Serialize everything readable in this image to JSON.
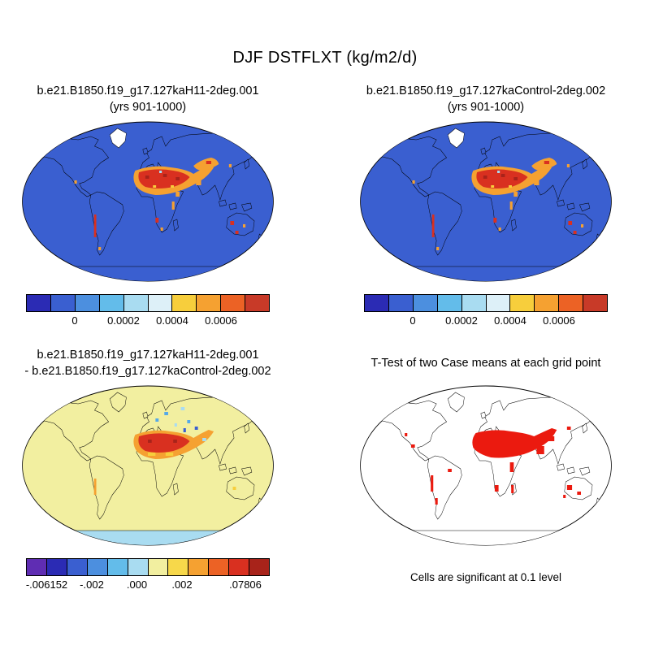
{
  "title": "DJF DSTFLXT (kg/m2/d)",
  "panels": [
    {
      "title_line1": "b.e21.B1850.f19_g17.127kaH11-2deg.001",
      "title_line2": "(yrs 901-1000)"
    },
    {
      "title_line1": "b.e21.B1850.f19_g17.127kaControl-2deg.002",
      "title_line2": "(yrs 901-1000)"
    },
    {
      "title_line1": "b.e21.B1850.f19_g17.127kaH11-2deg.001",
      "title_line2": "- b.e21.B1850.f19_g17.127kaControl-2deg.002"
    },
    {
      "title_line1": "T-Test of two Case means at each grid point",
      "caption": "Cells are significant at 0.1 level"
    }
  ],
  "colorbars": {
    "top": {
      "colors": [
        "#2B2BB4",
        "#3A5FD0",
        "#4C8FDF",
        "#63BCEA",
        "#A9DCF1",
        "#DDF0F8",
        "#F7CE3C",
        "#F5A131",
        "#EC6225",
        "#C83A28"
      ],
      "ticks": [
        {
          "label": "0",
          "pos": 0.2
        },
        {
          "label": "0.0002",
          "pos": 0.4
        },
        {
          "label": "0.0004",
          "pos": 0.6
        },
        {
          "label": "0.0006",
          "pos": 0.8
        }
      ]
    },
    "diff": {
      "colors": [
        "#5F2DB3",
        "#2B2BB4",
        "#3A5FD0",
        "#4C8FDF",
        "#63BCEA",
        "#A9DCF1",
        "#F2EFA0",
        "#F7D84A",
        "#F5A131",
        "#EC6225",
        "#D93020",
        "#A8231A"
      ],
      "ticks": [
        {
          "label": "-.006152",
          "pos": 0.085
        },
        {
          "label": "-.002",
          "pos": 0.27
        },
        {
          "label": ".000",
          "pos": 0.455
        },
        {
          "label": ".002",
          "pos": 0.64
        },
        {
          "label": ".07806",
          "pos": 0.9
        }
      ]
    }
  },
  "map_colors": {
    "field_blue": "#3A5FD0",
    "blue": "#3A5FD0",
    "sky": "#55A9E8",
    "pale_cyan": "#A9DCF1",
    "diff_yellow": "#F2EFA0",
    "yellow_orange": "#F7CE3C",
    "orange": "#F5A131",
    "red": "#D93020",
    "dark_red": "#A8231A",
    "ttest_red": "#EB1A0F",
    "white": "#FFFFFF"
  },
  "map_schemes": {
    "case": {
      "bg": "field_blue",
      "land": "field_blue",
      "greenland": "white",
      "antarctica": "field_blue",
      "overlays": "case"
    },
    "diff": {
      "bg": "diff_yellow",
      "land": "diff_yellow",
      "greenland": "diff_yellow",
      "antarctica": "pale_cyan",
      "overlays": "diff"
    },
    "ttest": {
      "bg": "white",
      "land": "white",
      "greenland": "white",
      "antarctica": "white",
      "overlays": "ttest"
    }
  },
  "chart_data": [
    {
      "type": "heatmap",
      "title": "b.e21.B1850.f19_g17.127kaH11-2deg.001 (yrs 901-1000)",
      "variable": "DSTFLXT",
      "units": "kg/m2/d",
      "season": "DJF",
      "projection": "Robinson world map",
      "colorbar_ticks": [
        0,
        0.0002,
        0.0004,
        0.0006
      ],
      "palette": [
        "#2B2BB4",
        "#3A5FD0",
        "#4C8FDF",
        "#63BCEA",
        "#A9DCF1",
        "#DDF0F8",
        "#F7CE3C",
        "#F5A131",
        "#EC6225",
        "#C83A28"
      ],
      "notable_features": "Dust flux near zero (blue) over oceans and most land; maxima above 0.0006 kg/m2/d (orange/red) over the Sahara, Sahel, Arabian Peninsula, Middle East and central Asia; small hotspots along the west coast of South America, southern Africa, Australia and Mexico; Greenland shown in pale/white colors."
    },
    {
      "type": "heatmap",
      "title": "b.e21.B1850.f19_g17.127kaControl-2deg.002 (yrs 901-1000)",
      "variable": "DSTFLXT",
      "units": "kg/m2/d",
      "season": "DJF",
      "projection": "Robinson world map",
      "colorbar_ticks": [
        0,
        0.0002,
        0.0004,
        0.0006
      ],
      "palette": [
        "#2B2BB4",
        "#3A5FD0",
        "#4C8FDF",
        "#63BCEA",
        "#A9DCF1",
        "#DDF0F8",
        "#F7CE3C",
        "#F5A131",
        "#EC6225",
        "#C83A28"
      ],
      "notable_features": "Very similar pattern to the H11 case: near-zero dust flux (blue) globally with red/orange maxima over the Sahara, Arabian Peninsula and Middle East, plus scattered coastal and Australian hotspots."
    },
    {
      "type": "heatmap",
      "title": "b.e21.B1850.f19_g17.127kaH11-2deg.001 - b.e21.B1850.f19_g17.127kaControl-2deg.002",
      "variable": "DSTFLXT difference",
      "units": "kg/m2/d",
      "season": "DJF",
      "projection": "Robinson world map",
      "colorbar_tick_labels": [
        "-.006152",
        "-.002",
        ".000",
        ".002",
        ".07806"
      ],
      "range": [
        -0.006152,
        0.07806
      ],
      "notable_features": "Differences near zero (pale yellow) almost everywhere; positive differences up to 0.07806 (orange/dark red) over the Sahara, Sahel and Middle East; scattered negative differences (blue/cyan) over eastern Europe, the Caspian region, central Asia and Tibet; light blue band over Antarctica."
    },
    {
      "type": "heatmap",
      "title": "T-Test of two Case means at each grid point",
      "caption": "Cells are significant at 0.1 level",
      "projection": "Robinson world map",
      "notable_features": "Red cells mark grid points significant at the 0.1 level, concentrated over the Sahara, Arabian Peninsula, Middle East, south and central Asia, with scattered cells along western South America, eastern and southern Africa, Madagascar, Australia and Mexico; rest of the map white."
    }
  ]
}
